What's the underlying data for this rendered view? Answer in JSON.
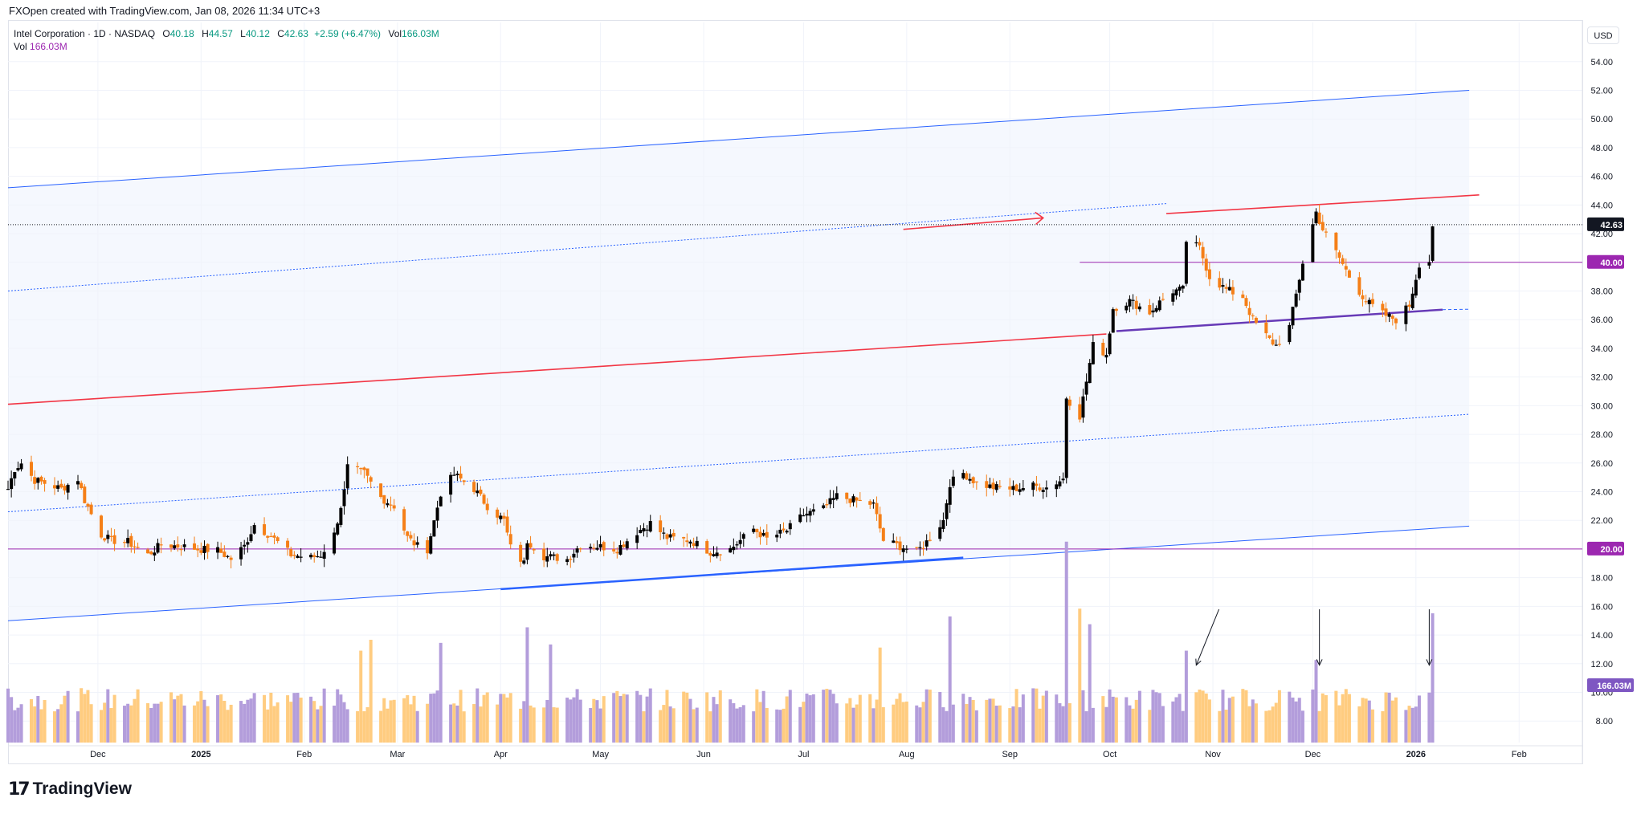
{
  "caption": "FXOpen created with TradingView.com, Jan 08, 2026 11:34 UTC+3",
  "legend": {
    "symbol": "Intel Corporation · 1D · NASDAQ",
    "o_label": "O",
    "o": "40.18",
    "h_label": "H",
    "h": "44.57",
    "l_label": "L",
    "l": "40.12",
    "c_label": "C",
    "c": "42.63",
    "change": "+2.59 (+6.47%)",
    "vol_label": "Vol",
    "vol": "166.03M",
    "vol2_label": "Vol",
    "vol2": "166.03M"
  },
  "currency": "USD",
  "brand": "TradingView",
  "colors": {
    "up": "#000000",
    "down": "#f57f17",
    "vol_up": "#b39ddb",
    "vol_down": "#ffcc80",
    "channel": "#2962ff",
    "red": "#f23645",
    "magenta": "#9c27b0",
    "support": "#673ab7"
  },
  "chart_data": {
    "type": "candlestick",
    "y_axis": {
      "min": 6.5,
      "max": 55.5,
      "ticks": [
        "54.00",
        "52.00",
        "50.00",
        "48.00",
        "46.00",
        "44.00",
        "42.00",
        "40.00",
        "38.00",
        "36.00",
        "34.00",
        "32.00",
        "30.00",
        "28.00",
        "26.00",
        "24.00",
        "22.00",
        "20.00",
        "18.00",
        "16.00",
        "14.00",
        "12.00",
        "10.00",
        "8.00"
      ]
    },
    "x_axis": {
      "start": "2024-11-04",
      "end": "2026-02-20",
      "ticks": [
        {
          "label": "Dec",
          "date": "2024-12-01"
        },
        {
          "label": "2025",
          "date": "2025-01-01"
        },
        {
          "label": "Feb",
          "date": "2025-02-01"
        },
        {
          "label": "Mar",
          "date": "2025-03-01"
        },
        {
          "label": "Apr",
          "date": "2025-04-01"
        },
        {
          "label": "May",
          "date": "2025-05-01"
        },
        {
          "label": "Jun",
          "date": "2025-06-01"
        },
        {
          "label": "Jul",
          "date": "2025-07-01"
        },
        {
          "label": "Aug",
          "date": "2025-08-01"
        },
        {
          "label": "Sep",
          "date": "2025-09-01"
        },
        {
          "label": "Oct",
          "date": "2025-10-01"
        },
        {
          "label": "Nov",
          "date": "2025-11-01"
        },
        {
          "label": "Dec",
          "date": "2025-12-01"
        },
        {
          "label": "2026",
          "date": "2026-01-01"
        },
        {
          "label": "Feb",
          "date": "2026-02-01"
        }
      ]
    },
    "price_path": [
      [
        "2024-11-04",
        24.2
      ],
      [
        "2024-11-06",
        25.6
      ],
      [
        "2024-11-08",
        26.0
      ],
      [
        "2024-11-12",
        24.8
      ],
      [
        "2024-11-15",
        24.6
      ],
      [
        "2024-11-20",
        24.2
      ],
      [
        "2024-11-25",
        24.9
      ],
      [
        "2024-11-27",
        23.4
      ],
      [
        "2024-12-02",
        21.0
      ],
      [
        "2024-12-05",
        20.6
      ],
      [
        "2024-12-10",
        20.5
      ],
      [
        "2024-12-16",
        19.6
      ],
      [
        "2024-12-20",
        20.3
      ],
      [
        "2024-12-26",
        20.2
      ],
      [
        "2024-12-31",
        20.0
      ],
      [
        "2025-01-06",
        19.9
      ],
      [
        "2025-01-10",
        19.3
      ],
      [
        "2025-01-14",
        20.2
      ],
      [
        "2025-01-17",
        21.7
      ],
      [
        "2025-01-22",
        20.9
      ],
      [
        "2025-01-28",
        19.6
      ],
      [
        "2025-02-03",
        19.4
      ],
      [
        "2025-02-06",
        19.6
      ],
      [
        "2025-02-10",
        21.0
      ],
      [
        "2025-02-13",
        24.0
      ],
      [
        "2025-02-14",
        25.7
      ],
      [
        "2025-02-19",
        25.3
      ],
      [
        "2025-02-24",
        23.6
      ],
      [
        "2025-02-28",
        23.0
      ],
      [
        "2025-03-04",
        20.8
      ],
      [
        "2025-03-07",
        20.2
      ],
      [
        "2025-03-10",
        20.0
      ],
      [
        "2025-03-14",
        23.9
      ],
      [
        "2025-03-18",
        25.2
      ],
      [
        "2025-03-24",
        24.2
      ],
      [
        "2025-03-28",
        23.0
      ],
      [
        "2025-04-02",
        22.0
      ],
      [
        "2025-04-04",
        20.1
      ],
      [
        "2025-04-08",
        19.0
      ],
      [
        "2025-04-09",
        20.6
      ],
      [
        "2025-04-14",
        19.5
      ],
      [
        "2025-04-21",
        19.3
      ],
      [
        "2025-04-25",
        20.3
      ],
      [
        "2025-04-30",
        20.2
      ],
      [
        "2025-05-06",
        20.0
      ],
      [
        "2025-05-12",
        21.2
      ],
      [
        "2025-05-16",
        21.8
      ],
      [
        "2025-05-21",
        20.8
      ],
      [
        "2025-05-28",
        20.6
      ],
      [
        "2025-06-03",
        19.8
      ],
      [
        "2025-06-09",
        20.0
      ],
      [
        "2025-06-12",
        20.6
      ],
      [
        "2025-06-16",
        21.4
      ],
      [
        "2025-06-20",
        20.7
      ],
      [
        "2025-06-26",
        21.3
      ],
      [
        "2025-07-01",
        22.4
      ],
      [
        "2025-07-07",
        22.8
      ],
      [
        "2025-07-11",
        23.7
      ],
      [
        "2025-07-16",
        23.4
      ],
      [
        "2025-07-22",
        23.1
      ],
      [
        "2025-07-25",
        20.6
      ],
      [
        "2025-07-30",
        20.2
      ],
      [
        "2025-08-04",
        19.8
      ],
      [
        "2025-08-07",
        20.5
      ],
      [
        "2025-08-12",
        22.0
      ],
      [
        "2025-08-14",
        24.6
      ],
      [
        "2025-08-18",
        25.3
      ],
      [
        "2025-08-22",
        24.6
      ],
      [
        "2025-08-27",
        24.3
      ],
      [
        "2025-09-02",
        24.2
      ],
      [
        "2025-09-08",
        24.4
      ],
      [
        "2025-09-12",
        24.3
      ],
      [
        "2025-09-17",
        24.9
      ],
      [
        "2025-09-18",
        30.6
      ],
      [
        "2025-09-22",
        29.3
      ],
      [
        "2025-09-24",
        31.7
      ],
      [
        "2025-09-26",
        34.2
      ],
      [
        "2025-09-30",
        33.6
      ],
      [
        "2025-10-02",
        36.8
      ],
      [
        "2025-10-07",
        37.3
      ],
      [
        "2025-10-13",
        36.5
      ],
      [
        "2025-10-16",
        37.2
      ],
      [
        "2025-10-20",
        38.0
      ],
      [
        "2025-10-23",
        38.1
      ],
      [
        "2025-10-24",
        41.5
      ],
      [
        "2025-10-28",
        41.0
      ],
      [
        "2025-10-31",
        39.0
      ],
      [
        "2025-11-05",
        38.1
      ],
      [
        "2025-11-10",
        37.6
      ],
      [
        "2025-11-13",
        36.0
      ],
      [
        "2025-11-18",
        34.6
      ],
      [
        "2025-11-20",
        34.2
      ],
      [
        "2025-11-24",
        35.5
      ],
      [
        "2025-11-28",
        40.0
      ],
      [
        "2025-12-02",
        43.5
      ],
      [
        "2025-12-04",
        42.3
      ],
      [
        "2025-12-09",
        40.3
      ],
      [
        "2025-12-12",
        39.0
      ],
      [
        "2025-12-17",
        37.3
      ],
      [
        "2025-12-22",
        36.4
      ],
      [
        "2025-12-26",
        36.0
      ],
      [
        "2025-12-30",
        37.0
      ],
      [
        "2026-01-02",
        39.9
      ],
      [
        "2026-01-05",
        40.1
      ],
      [
        "2026-01-06",
        42.6
      ]
    ],
    "last_price": 42.63,
    "price_labels": [
      "42.63",
      "40.00",
      "20.00"
    ],
    "volume": {
      "unit": "M",
      "last_label": "166.03M",
      "spikes": [
        [
          "2025-02-18",
          118
        ],
        [
          "2025-02-21",
          132
        ],
        [
          "2025-03-14",
          128
        ],
        [
          "2025-04-09",
          148
        ],
        [
          "2025-04-16",
          126
        ],
        [
          "2025-07-24",
          122
        ],
        [
          "2025-08-14",
          162
        ],
        [
          "2025-09-18",
          258
        ],
        [
          "2025-09-22",
          172
        ],
        [
          "2025-09-25",
          152
        ],
        [
          "2025-10-24",
          118
        ],
        [
          "2025-12-02",
          106
        ],
        [
          "2026-01-06",
          166
        ]
      ]
    },
    "lines": [
      {
        "name": "channel-upper",
        "from": [
          "2024-11-04",
          45.2
        ],
        "to": [
          "2026-01-17",
          52.0
        ]
      },
      {
        "name": "channel-lower",
        "from": [
          "2024-11-04",
          15.0
        ],
        "to": [
          "2026-01-17",
          21.6
        ]
      },
      {
        "name": "channel-mid-upper",
        "from": [
          "2024-11-04",
          38.0
        ],
        "to": [
          "2025-10-18",
          44.1
        ],
        "dotted": true
      },
      {
        "name": "channel-mid-lower",
        "from": [
          "2024-11-04",
          22.6
        ],
        "to": [
          "2026-01-17",
          29.4
        ],
        "dotted": true
      },
      {
        "name": "red-midline",
        "from": [
          "2024-11-04",
          30.1
        ],
        "to": [
          "2025-09-30",
          35.0
        ]
      },
      {
        "name": "red-arrow",
        "from": [
          "2025-07-31",
          42.3
        ],
        "to": [
          "2025-09-11",
          43.1
        ]
      },
      {
        "name": "red-resistance",
        "from": [
          "2025-10-18",
          43.4
        ],
        "to": [
          "2026-01-20",
          44.7
        ]
      },
      {
        "name": "support-bold-blue",
        "from": [
          "2025-04-01",
          17.2
        ],
        "to": [
          "2025-08-18",
          19.4
        ]
      },
      {
        "name": "support-purple",
        "from": [
          "2025-10-03",
          35.2
        ],
        "to": [
          "2026-01-09",
          36.7
        ]
      },
      {
        "name": "level-40",
        "from": [
          "2025-09-22",
          40.0
        ],
        "to": [
          "2026-02-20",
          40.0
        ]
      },
      {
        "name": "level-20",
        "from": [
          "2024-11-04",
          20.0
        ],
        "to": [
          "2026-02-20",
          20.0
        ]
      }
    ],
    "arrows": [
      {
        "from": [
          "2025-10-29",
          15.8
        ],
        "to": [
          "2025-10-27",
          11.9
        ]
      },
      {
        "from": [
          "2025-12-03",
          15.8
        ],
        "to": [
          "2025-12-03",
          11.9
        ]
      },
      {
        "from": [
          "2026-01-05",
          15.8
        ],
        "to": [
          "2026-01-05",
          11.9
        ]
      }
    ]
  }
}
